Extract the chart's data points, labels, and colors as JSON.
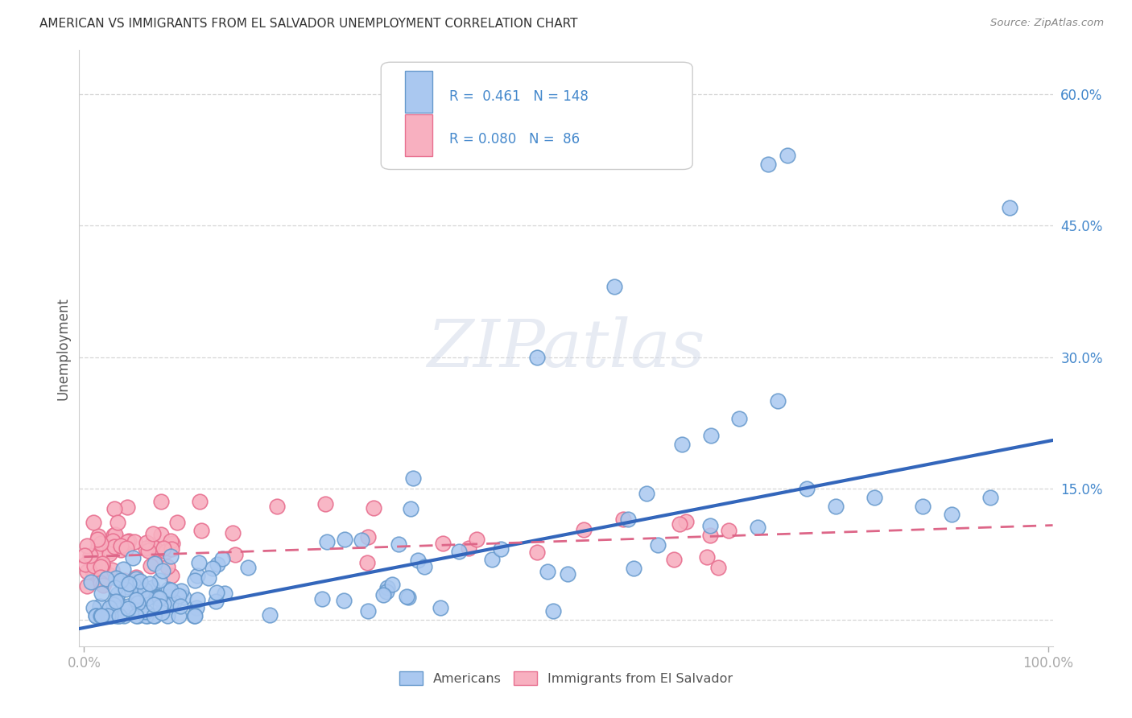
{
  "title": "AMERICAN VS IMMIGRANTS FROM EL SALVADOR UNEMPLOYMENT CORRELATION CHART",
  "source": "Source: ZipAtlas.com",
  "ylabel": "Unemployment",
  "watermark": "ZIPatlas",
  "xlim": [
    -0.005,
    1.005
  ],
  "ylim": [
    -0.03,
    0.65
  ],
  "yticks": [
    0.0,
    0.15,
    0.3,
    0.45,
    0.6
  ],
  "ytick_labels": [
    "",
    "15.0%",
    "30.0%",
    "45.0%",
    "60.0%"
  ],
  "xtick_labels": [
    "0.0%",
    "100.0%"
  ],
  "r_american": 0.461,
  "n_american": 148,
  "r_salvador": 0.08,
  "n_salvador": 86,
  "color_american": "#aac8f0",
  "color_salvador": "#f8b0c0",
  "edge_color_american": "#6699cc",
  "edge_color_salvador": "#e87090",
  "line_color_american": "#3366bb",
  "line_color_salvador": "#dd6688",
  "trend_american_x0": -0.005,
  "trend_american_y0": -0.01,
  "trend_american_x1": 1.005,
  "trend_american_y1": 0.205,
  "trend_salvador_x0": 0.0,
  "trend_salvador_y0": 0.072,
  "trend_salvador_x1": 1.005,
  "trend_salvador_y1": 0.108,
  "background_color": "#ffffff",
  "grid_color": "#cccccc",
  "title_color": "#333333",
  "axis_label_color": "#555555",
  "tick_color": "#4488cc",
  "legend_r_color": "#4488cc"
}
